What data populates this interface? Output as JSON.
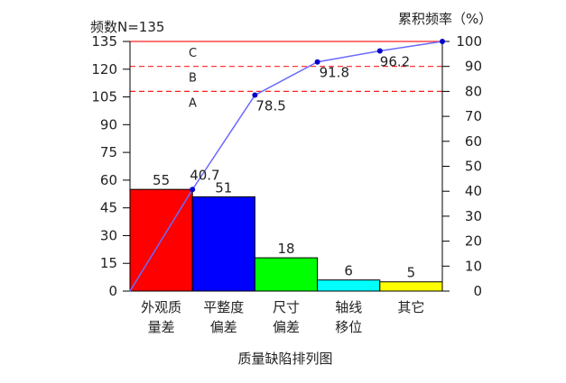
{
  "chart_data": {
    "type": "bar",
    "title": "质量缺陷排列图",
    "left_axis_label": "频数N=135",
    "right_axis_label": "累积频率（%）",
    "categories": [
      [
        "外观质",
        "量差"
      ],
      [
        "平整度",
        "偏差"
      ],
      [
        "尺寸",
        "偏差"
      ],
      [
        "轴线",
        "移位"
      ],
      [
        "其它"
      ]
    ],
    "values": [
      55,
      51,
      18,
      6,
      5
    ],
    "bar_colors": [
      "#ff0000",
      "#0000ff",
      "#00ff00",
      "#00ffff",
      "#ffff00"
    ],
    "cumulative_percent": [
      0,
      40.7,
      78.5,
      91.8,
      96.2,
      100
    ],
    "cumulative_labels": [
      "",
      "40.7",
      "78.5",
      "91.8",
      "96.2",
      ""
    ],
    "ylim_left": [
      0,
      135
    ],
    "left_ticks": [
      0,
      15,
      30,
      45,
      60,
      75,
      90,
      105,
      120,
      135
    ],
    "ylim_right": [
      0,
      100
    ],
    "right_ticks": [
      0,
      10,
      20,
      30,
      40,
      50,
      60,
      70,
      80,
      90,
      100
    ],
    "reference_lines": [
      {
        "label": "A",
        "value": 80,
        "style": "dashed"
      },
      {
        "label": "B",
        "value": 90,
        "style": "dashed"
      },
      {
        "label": "C",
        "value": 100,
        "style": "solid"
      }
    ],
    "line_color": "#6a6aff",
    "ref_line_color": "#ff2020",
    "point_color": "#0000cc"
  }
}
